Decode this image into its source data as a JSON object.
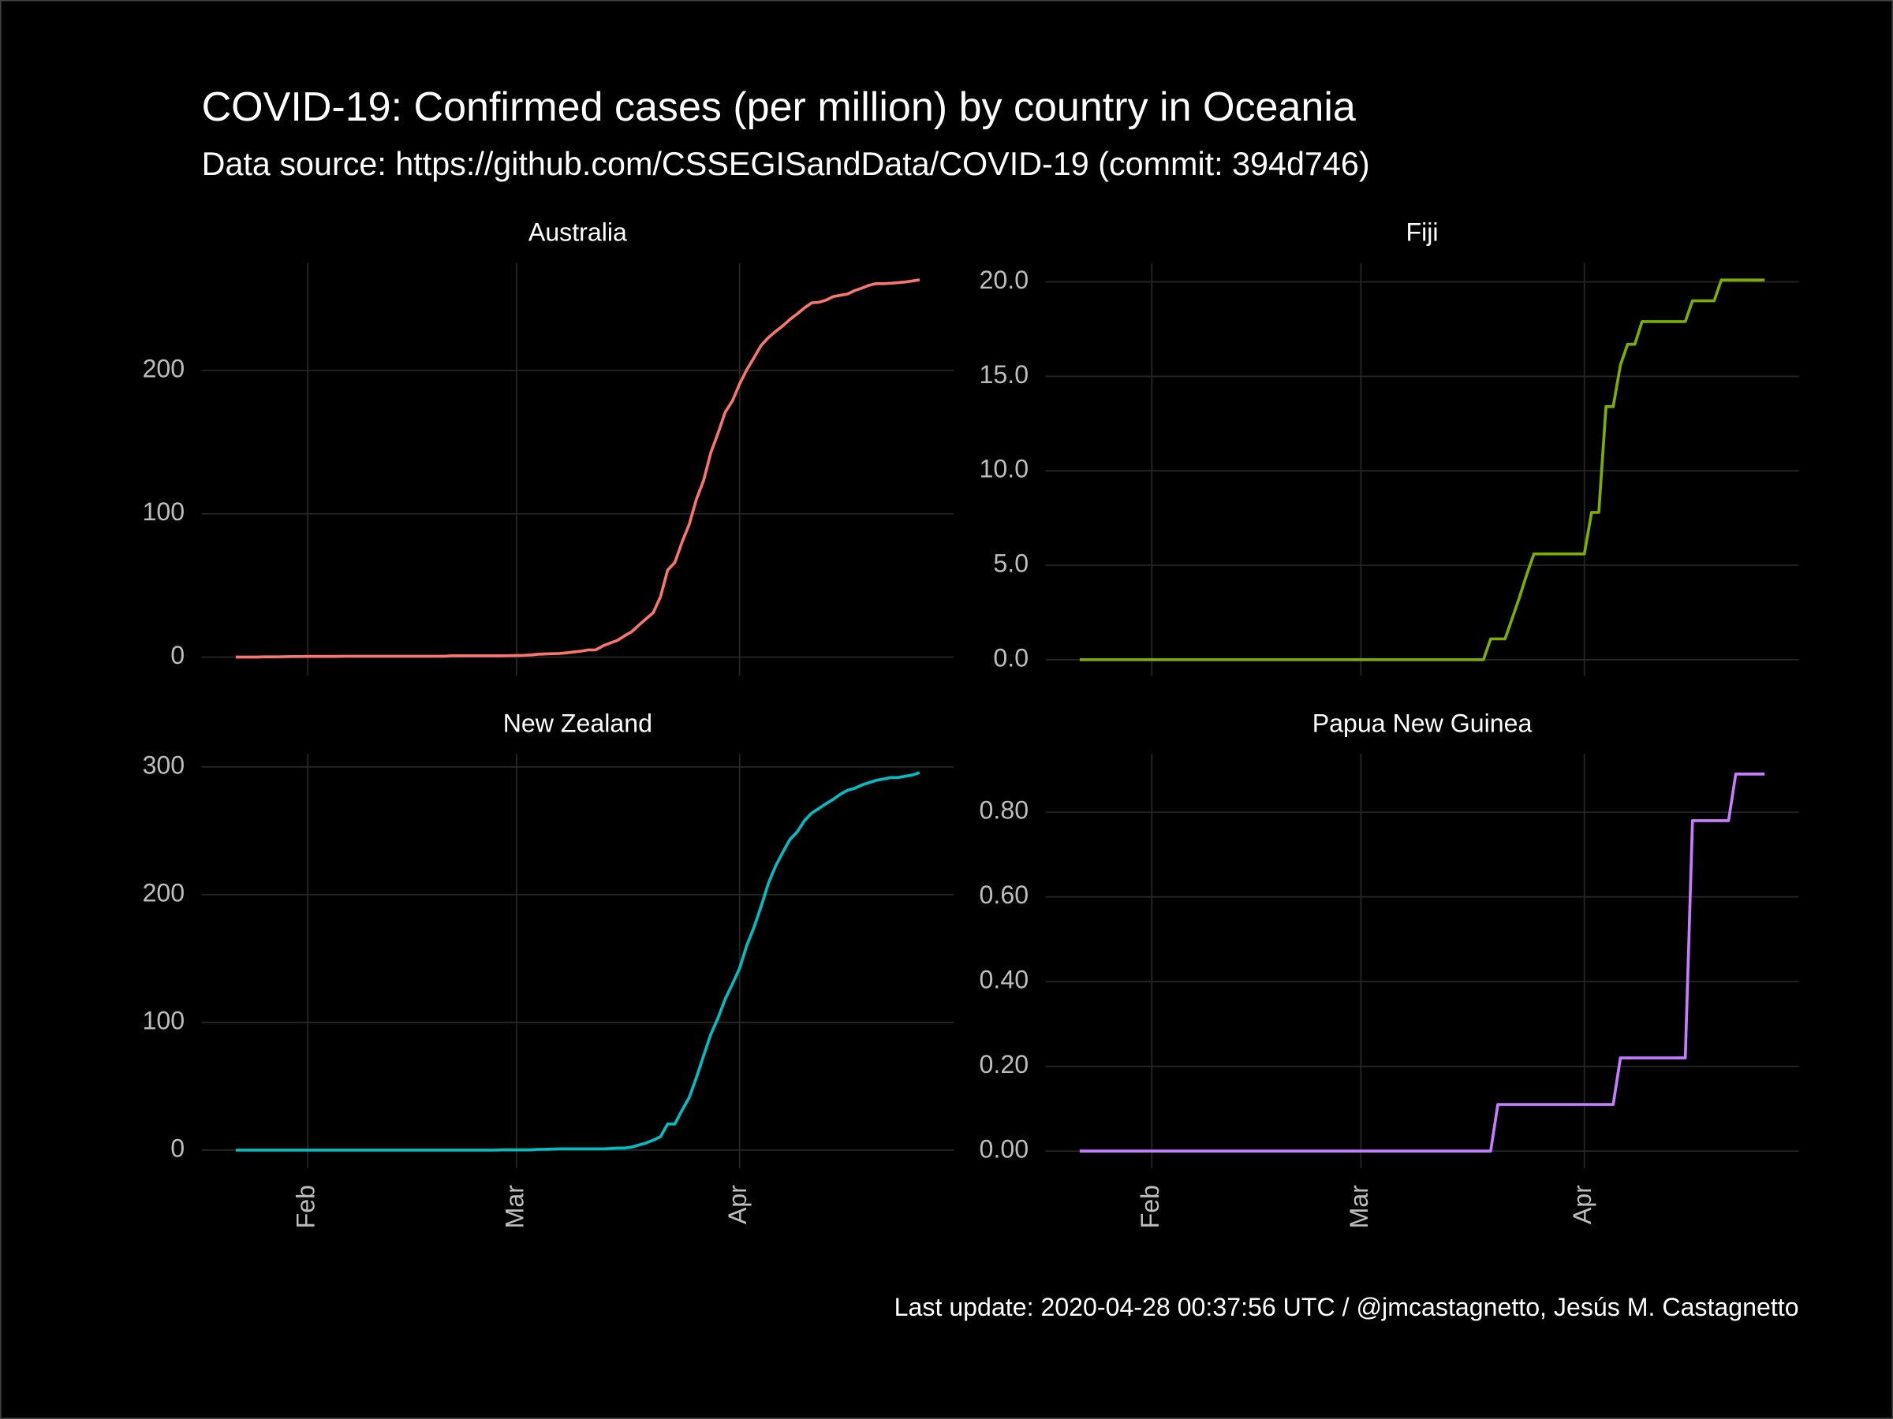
{
  "chart_data": {
    "type": "line",
    "title": "COVID-19: Confirmed cases (per million)  by country in Oceania",
    "subtitle": "Data source: https://github.com/CSSEGISandData/COVID-19 (commit: 394d746)",
    "caption": "Last update:  2020-04-28 00:37:56 UTC / @jmcastagnetto, Jesús M. Castagnetto",
    "grid": true,
    "categories": [
      null,
      null,
      null,
      null,
      null,
      null,
      null,
      null,
      null,
      null,
      "Feb",
      null,
      null,
      null,
      null,
      null,
      null,
      null,
      null,
      null,
      null,
      null,
      null,
      null,
      null,
      null,
      null,
      null,
      null,
      null,
      null,
      null,
      null,
      null,
      null,
      null,
      null,
      null,
      null,
      "Mar",
      null,
      null,
      null,
      null,
      null,
      null,
      null,
      null,
      null,
      null,
      null,
      null,
      null,
      null,
      null,
      null,
      null,
      null,
      null,
      null,
      null,
      null,
      null,
      null,
      null,
      null,
      null,
      null,
      null,
      null,
      "Apr",
      null,
      null,
      null,
      null,
      null,
      null,
      null,
      null,
      null,
      null,
      null,
      null,
      null,
      null,
      null,
      null,
      null,
      null,
      null,
      null,
      null,
      null,
      null,
      null,
      null
    ],
    "facets": [
      {
        "ylim": [
          -13,
          275
        ],
        "yticks": [
          0,
          100,
          200
        ],
        "series": [
          {
            "name": "Australia",
            "color": "#F8766D",
            "values": [
              0,
              0,
              0,
              0,
              0.2,
              0.2,
              0.2,
              0.3,
              0.4,
              0.4,
              0.5,
              0.5,
              0.5,
              0.5,
              0.5,
              0.6,
              0.6,
              0.6,
              0.6,
              0.6,
              0.6,
              0.6,
              0.6,
              0.6,
              0.6,
              0.6,
              0.6,
              0.6,
              0.6,
              0.6,
              0.9,
              0.9,
              0.9,
              0.9,
              0.9,
              0.9,
              0.9,
              0.9,
              1.0,
              1.1,
              1.2,
              1.5,
              2.0,
              2.2,
              2.4,
              2.5,
              3.0,
              3.6,
              4.2,
              5.0,
              5.0,
              7.8,
              9.8,
              11.6,
              14.8,
              17.7,
              22.3,
              26.7,
              31.0,
              42.0,
              60.7,
              66.0,
              80.2,
              92.7,
              110.2,
              123.3,
              142.7,
              156.2,
              171.0,
              178.8,
              190.7,
              200.6,
              209.0,
              217.6,
              223.0,
              227.3,
              231.2,
              235.7,
              239.5,
              243.7,
              247.2,
              247.6,
              249.1,
              251.6,
              252.5,
              253.4,
              255.8,
              257.5,
              259.5,
              260.7,
              260.6,
              260.9,
              261.3,
              261.8,
              262.5,
              263.3
            ]
          }
        ]
      },
      {
        "ylim": [
          -0.85,
          21.0
        ],
        "yticks": [
          {
            "value": 0,
            "label": "0.0"
          },
          {
            "value": 5,
            "label": "5.0"
          },
          {
            "value": 10,
            "label": "10.0"
          },
          {
            "value": 15,
            "label": "15.0"
          },
          {
            "value": 20,
            "label": "20.0"
          }
        ],
        "series": [
          {
            "name": "Fiji",
            "color": "#7CAE00",
            "values": [
              0,
              0,
              0,
              0,
              0,
              0,
              0,
              0,
              0,
              0,
              0,
              0,
              0,
              0,
              0,
              0,
              0,
              0,
              0,
              0,
              0,
              0,
              0,
              0,
              0,
              0,
              0,
              0,
              0,
              0,
              0,
              0,
              0,
              0,
              0,
              0,
              0,
              0,
              0,
              0,
              0,
              0,
              0,
              0,
              0,
              0,
              0,
              0,
              0,
              0,
              0,
              0,
              0,
              0,
              0,
              0,
              0,
              1.1,
              1.1,
              1.1,
              2.2,
              3.3,
              4.5,
              5.6,
              5.6,
              5.6,
              5.6,
              5.6,
              5.6,
              5.6,
              5.6,
              7.8,
              7.8,
              13.4,
              13.4,
              15.6,
              16.7,
              16.7,
              17.9,
              17.9,
              17.9,
              17.9,
              17.9,
              17.9,
              17.9,
              19.0,
              19.0,
              19.0,
              19.0,
              20.1,
              20.1,
              20.1,
              20.1,
              20.1,
              20.1,
              20.1
            ]
          }
        ]
      },
      {
        "ylim": [
          -14,
          310
        ],
        "yticks": [
          0,
          100,
          200,
          300
        ],
        "series": [
          {
            "name": "New Zealand",
            "color": "#00BFC4",
            "values": [
              0,
              0,
              0,
              0,
              0,
              0,
              0,
              0,
              0,
              0,
              0,
              0,
              0,
              0,
              0,
              0,
              0,
              0,
              0,
              0,
              0,
              0,
              0,
              0,
              0,
              0,
              0,
              0,
              0,
              0,
              0,
              0,
              0,
              0,
              0,
              0,
              0,
              0.2,
              0.2,
              0.2,
              0.2,
              0.2,
              0.6,
              0.6,
              0.8,
              1.0,
              1.0,
              1.0,
              1.0,
              1.0,
              1.0,
              1.0,
              1.2,
              1.6,
              1.6,
              2.4,
              4.0,
              5.6,
              7.8,
              10.5,
              20.5,
              20.5,
              31.2,
              41.2,
              56.9,
              74.0,
              90.7,
              103.4,
              118.4,
              130.1,
              142.4,
              160.3,
              174.5,
              191.0,
              208.9,
              222.4,
              233.2,
              243.3,
              249.1,
              257.9,
              263.8,
              267.4,
              271.2,
              274.6,
              278.6,
              281.7,
              283.3,
              285.9,
              287.7,
              289.5,
              290.5,
              291.7,
              291.7,
              292.7,
              293.7,
              295.5
            ]
          }
        ]
      },
      {
        "ylim": [
          -0.04,
          0.937
        ],
        "yticks": [
          {
            "value": 0,
            "label": "0.00"
          },
          {
            "value": 0.2,
            "label": "0.20"
          },
          {
            "value": 0.4,
            "label": "0.40"
          },
          {
            "value": 0.6,
            "label": "0.60"
          },
          {
            "value": 0.8,
            "label": "0.80"
          }
        ],
        "series": [
          {
            "name": "Papua New Guinea",
            "color": "#C77CFF",
            "values": [
              0,
              0,
              0,
              0,
              0,
              0,
              0,
              0,
              0,
              0,
              0,
              0,
              0,
              0,
              0,
              0,
              0,
              0,
              0,
              0,
              0,
              0,
              0,
              0,
              0,
              0,
              0,
              0,
              0,
              0,
              0,
              0,
              0,
              0,
              0,
              0,
              0,
              0,
              0,
              0,
              0,
              0,
              0,
              0,
              0,
              0,
              0,
              0,
              0,
              0,
              0,
              0,
              0,
              0,
              0,
              0,
              0,
              0,
              0.11,
              0.11,
              0.11,
              0.11,
              0.11,
              0.11,
              0.11,
              0.11,
              0.11,
              0.11,
              0.11,
              0.11,
              0.11,
              0.11,
              0.11,
              0.11,
              0.11,
              0.22,
              0.22,
              0.22,
              0.22,
              0.22,
              0.22,
              0.22,
              0.22,
              0.22,
              0.22,
              0.78,
              0.78,
              0.78,
              0.78,
              0.78,
              0.78,
              0.89,
              0.89,
              0.89,
              0.89,
              0.89
            ]
          }
        ]
      }
    ]
  }
}
